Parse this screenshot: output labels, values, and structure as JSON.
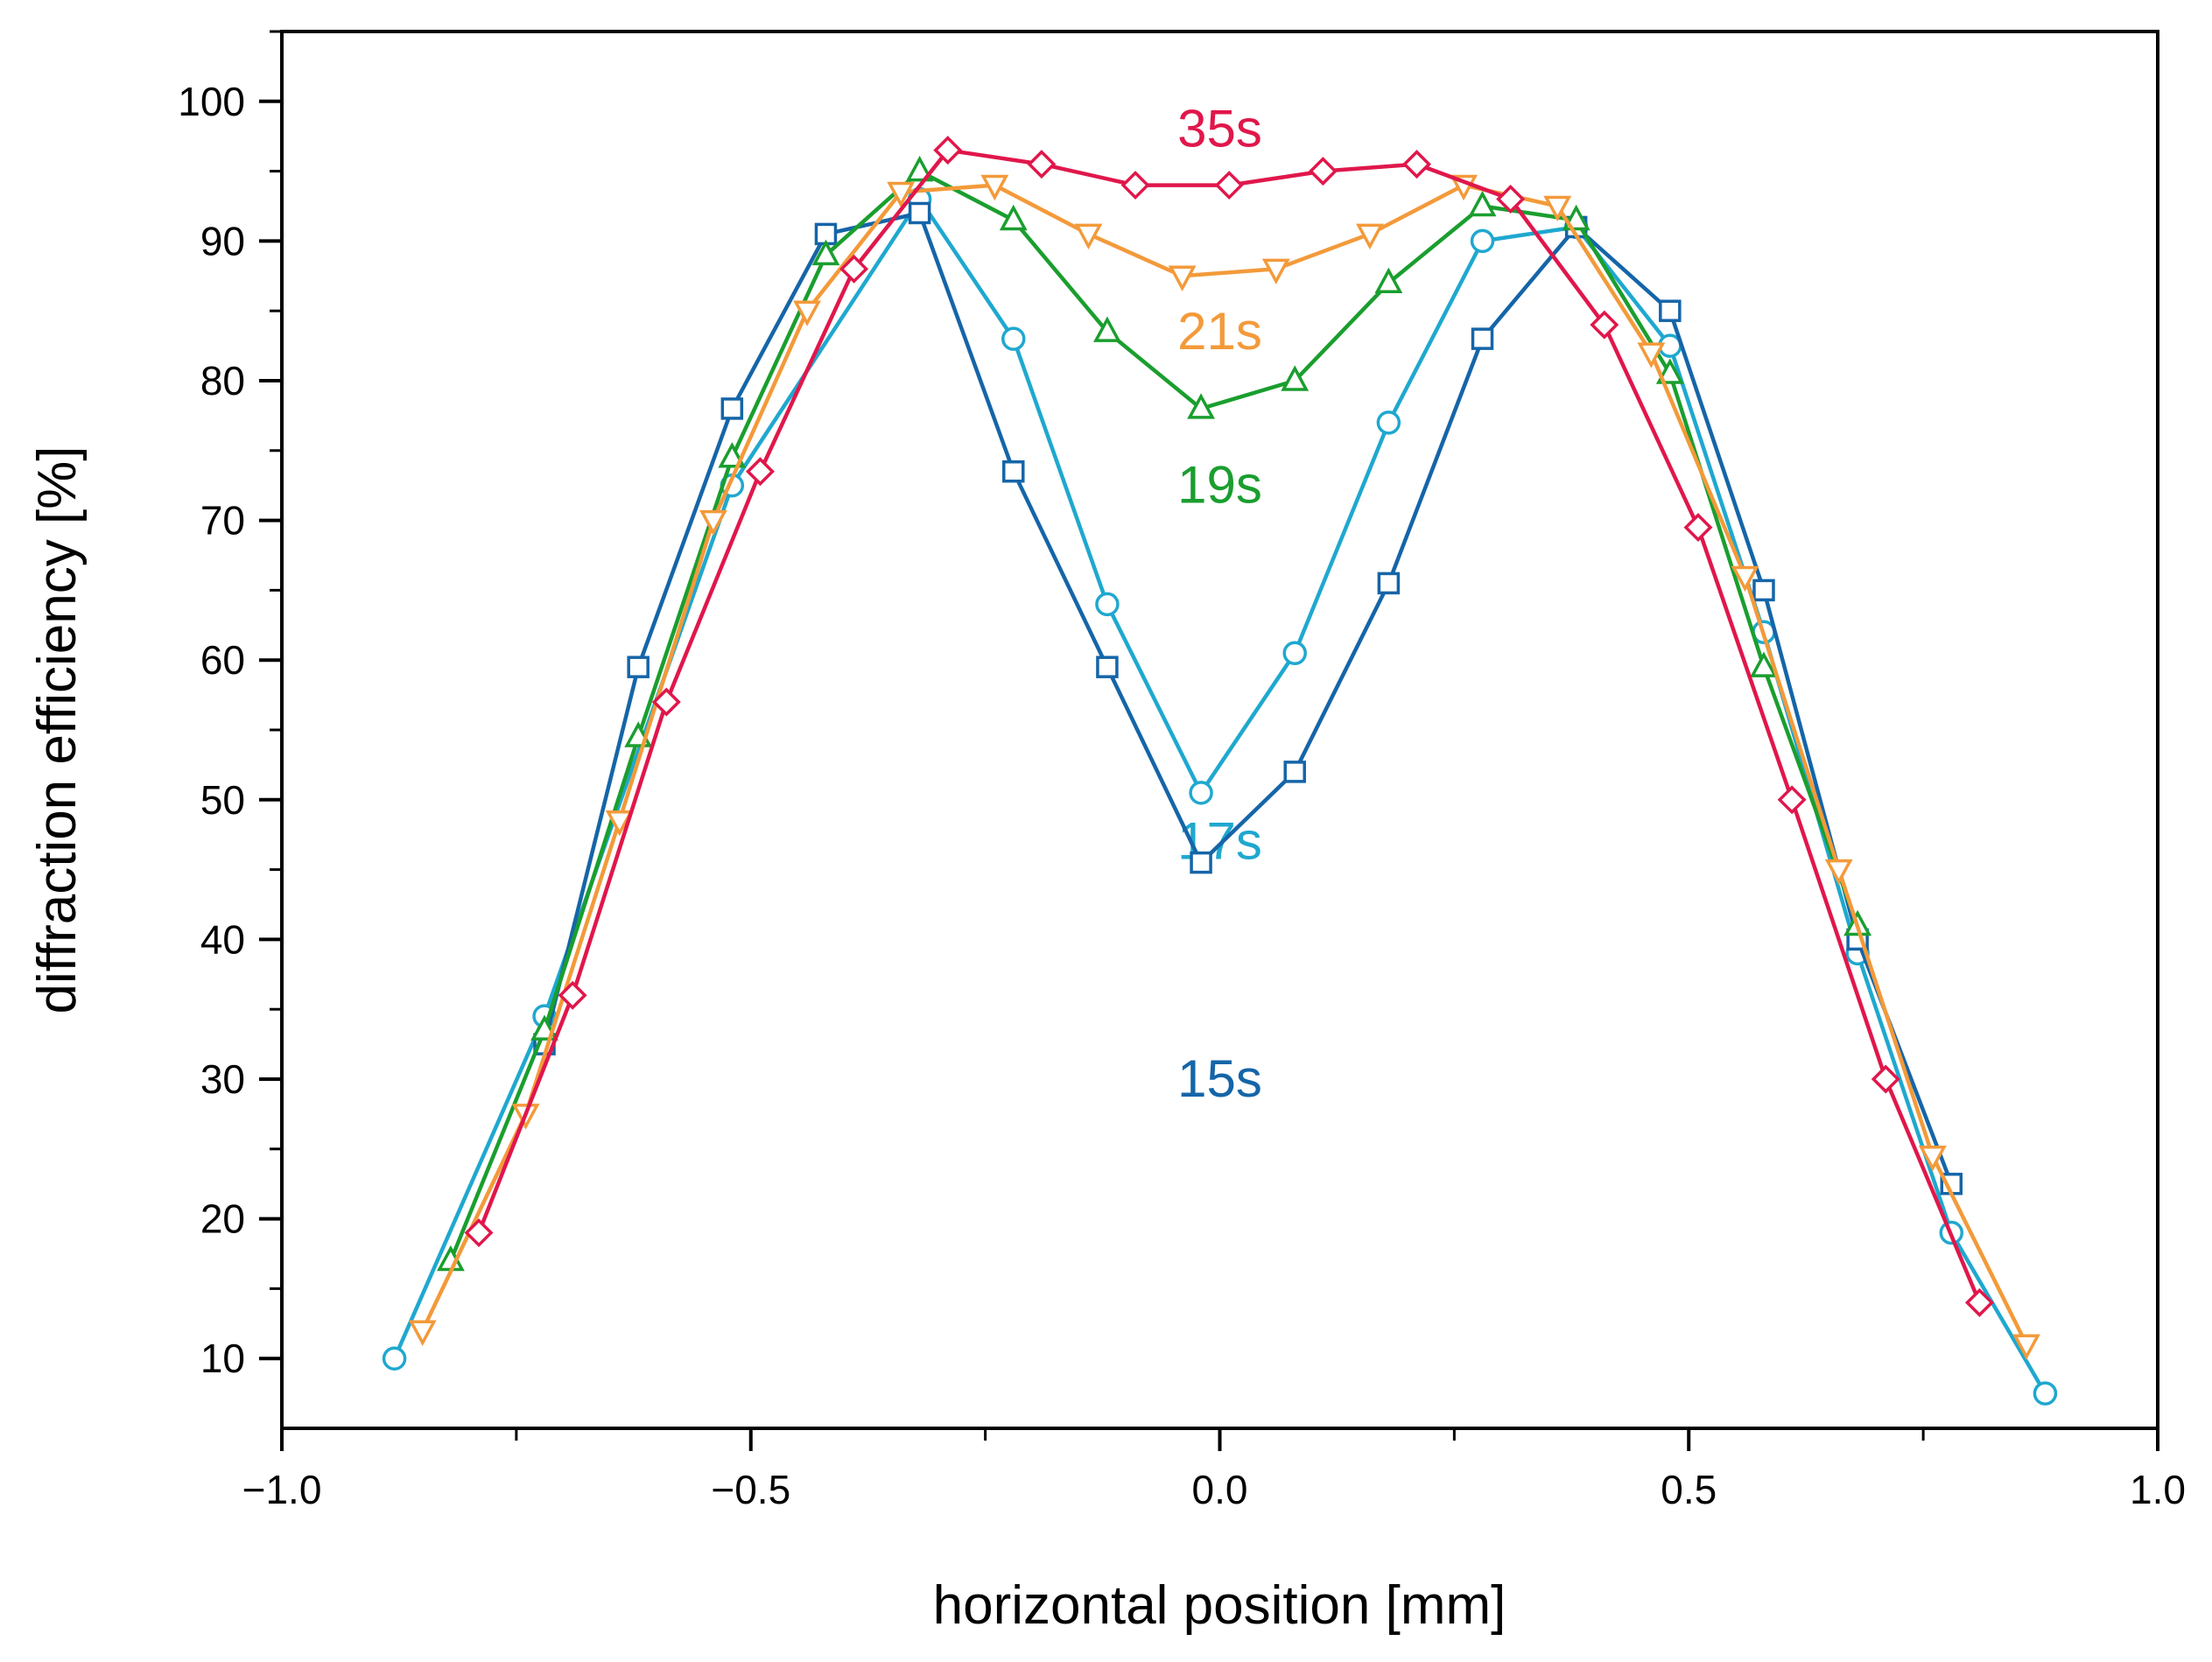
{
  "chart_data": {
    "type": "line",
    "title": "",
    "xlabel": "horizontal position [mm]",
    "ylabel": "diffraction efficiency [%]",
    "xlim": [
      -1.0,
      1.0
    ],
    "ylim": [
      5,
      105
    ],
    "x_ticks": [
      -1.0,
      -0.5,
      0.0,
      0.5,
      1.0
    ],
    "x_tick_labels": [
      "−1.0",
      "−0.5",
      "0.0",
      "0.5",
      "1.0"
    ],
    "y_ticks": [
      10,
      20,
      30,
      40,
      50,
      60,
      70,
      80,
      90,
      100
    ],
    "y_tick_labels": [
      "10",
      "20",
      "30",
      "40",
      "50",
      "60",
      "70",
      "80",
      "90",
      "100"
    ],
    "grid": false,
    "series": [
      {
        "name": "17s",
        "label": "17s",
        "color": "#1fa8cf",
        "marker": "circle",
        "x": [
          -0.88,
          -0.72,
          -0.52,
          -0.32,
          -0.22,
          -0.12,
          -0.02,
          0.08,
          0.18,
          0.28,
          0.38,
          0.48,
          0.58,
          0.68,
          0.78,
          0.88
        ],
        "y": [
          10,
          34.5,
          72.5,
          93,
          83,
          64,
          50.5,
          60.5,
          77,
          90,
          91,
          82.5,
          62,
          39,
          19,
          7.5
        ],
        "label_pos": [
          0.0,
          47
        ]
      },
      {
        "name": "15s",
        "label": "15s",
        "color": "#1565a8",
        "marker": "square",
        "x": [
          -0.72,
          -0.62,
          -0.52,
          -0.42,
          -0.32,
          -0.22,
          -0.12,
          -0.02,
          0.08,
          0.18,
          0.28,
          0.38,
          0.48,
          0.58,
          0.68,
          0.78
        ],
        "y": [
          32.5,
          59.5,
          78,
          90.5,
          92,
          73.5,
          59.5,
          45.5,
          52,
          65.5,
          83,
          91,
          85,
          65,
          40,
          22.5
        ],
        "label_pos": [
          0.0,
          30
        ]
      },
      {
        "name": "19s",
        "label": "19s",
        "color": "#1a9e2e",
        "marker": "triangle-up",
        "x": [
          -0.82,
          -0.72,
          -0.62,
          -0.52,
          -0.42,
          -0.32,
          -0.22,
          -0.12,
          -0.02,
          0.08,
          0.18,
          0.28,
          0.38,
          0.48,
          0.58,
          0.68
        ],
        "y": [
          17,
          33.5,
          54.5,
          74.5,
          89,
          95,
          91.5,
          83.5,
          78,
          80,
          87,
          92.5,
          91.5,
          80.5,
          59.5,
          41
        ],
        "label_pos": [
          0.0,
          72.5
        ]
      },
      {
        "name": "21s",
        "label": "21s",
        "color": "#f39a3a",
        "marker": "triangle-down",
        "x": [
          -0.85,
          -0.74,
          -0.64,
          -0.54,
          -0.44,
          -0.34,
          -0.24,
          -0.14,
          -0.04,
          0.06,
          0.16,
          0.26,
          0.36,
          0.46,
          0.56,
          0.66,
          0.76,
          0.86
        ],
        "y": [
          12,
          27.5,
          48.5,
          70,
          85,
          93.5,
          94,
          90.5,
          87.5,
          88,
          90.5,
          94,
          92.5,
          82,
          66,
          45,
          24.5,
          11
        ],
        "label_pos": [
          0.0,
          83.5
        ]
      },
      {
        "name": "35s",
        "label": "35s",
        "color": "#e0174b",
        "marker": "diamond",
        "x": [
          -0.79,
          -0.69,
          -0.59,
          -0.49,
          -0.39,
          -0.29,
          -0.19,
          -0.09,
          0.01,
          0.11,
          0.21,
          0.31,
          0.41,
          0.51,
          0.61,
          0.71,
          0.81
        ],
        "y": [
          19,
          36,
          57,
          73.5,
          88,
          96.5,
          95.5,
          94,
          94,
          95,
          95.5,
          93,
          84,
          69.5,
          50,
          30,
          14
        ],
        "label_pos": [
          0.0,
          98
        ]
      }
    ]
  }
}
